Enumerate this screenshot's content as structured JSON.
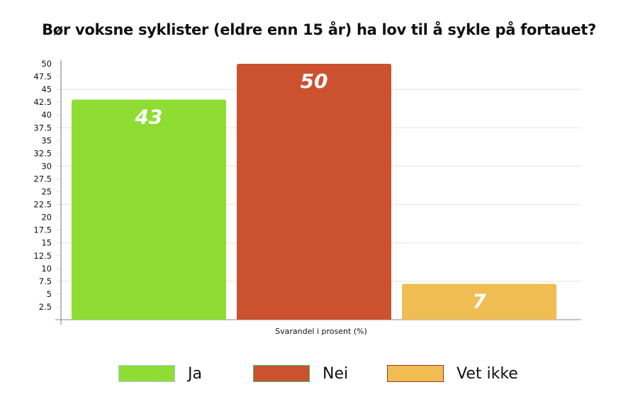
{
  "chart_data": {
    "type": "bar",
    "title": "Bør voksne syklister (eldre enn 15 år) ha lov til å sykle på fortauet?",
    "xlabel": "Svarandel i prosent (%)",
    "ylabel": "",
    "categories": [
      "Ja",
      "Nei",
      "Vet ikke"
    ],
    "values": [
      43,
      50,
      7
    ],
    "data_labels": [
      "43",
      "50",
      "7"
    ],
    "colors": [
      "#8fdc33",
      "#cc512f",
      "#efbd52"
    ],
    "legend_borders": [
      "#a6c8f0",
      "#3fbf6f",
      "#a2342a"
    ],
    "ylim": [
      0,
      50
    ],
    "yticks": [
      "2.5",
      "5",
      "7.5",
      "10",
      "12.5",
      "15",
      "17.5",
      "20",
      "22.5",
      "25",
      "27.5",
      "30",
      "32.5",
      "35",
      "37.5",
      "40",
      "42.5",
      "45",
      "47.5",
      "50"
    ],
    "gridlines": [
      7.5,
      15,
      22.5,
      30,
      37.5,
      45
    ],
    "grid": true,
    "legend_position": "bottom"
  }
}
